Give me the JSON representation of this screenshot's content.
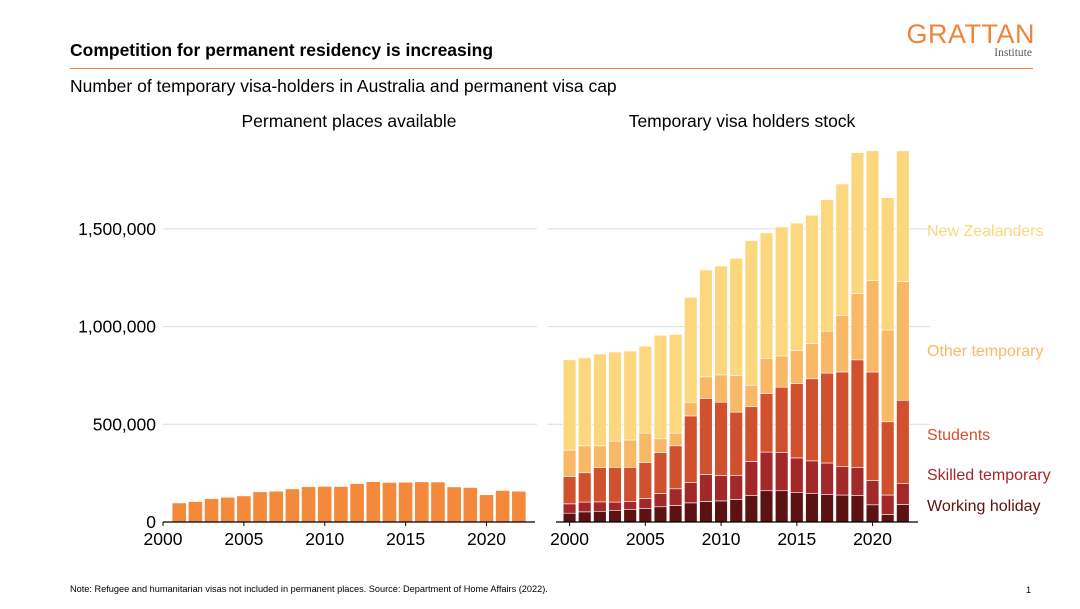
{
  "header": {
    "title": "Competition for permanent residency is increasing",
    "subtitle": "Number of temporary visa-holders in Australia and permanent visa cap"
  },
  "logo": {
    "name": "GRATTAN",
    "sub": "Institute"
  },
  "footer": {
    "note": "Note: Refugee and humanitarian visas not included in permanent places. Source: Department of Home Affairs (2022).",
    "page_number": "1"
  },
  "colors": {
    "working_holiday": "#5c1212",
    "skilled_temporary": "#a3282a",
    "students": "#d1512f",
    "other_temporary": "#f9b866",
    "new_zealanders": "#fcd77d",
    "permanent": "#f4883b",
    "accent": "#f0843a",
    "grid": "#dcdcdc"
  },
  "chart_data": [
    {
      "type": "bar",
      "title": "Permanent places available",
      "x": [
        2001,
        2002,
        2003,
        2004,
        2005,
        2006,
        2007,
        2008,
        2009,
        2010,
        2011,
        2012,
        2013,
        2014,
        2015,
        2016,
        2017,
        2018,
        2019,
        2020,
        2021,
        2022
      ],
      "values": [
        96000,
        103000,
        118000,
        125000,
        132000,
        153000,
        156000,
        168000,
        179000,
        181000,
        180000,
        195000,
        205000,
        201000,
        202000,
        204000,
        203000,
        178000,
        175000,
        138000,
        160000,
        156000
      ],
      "xticks": [
        2000,
        2005,
        2010,
        2015,
        2020
      ],
      "xlim": [
        2000,
        2023
      ],
      "ylim": [
        0,
        1950000
      ],
      "yticks": [
        0,
        500000,
        1000000,
        1500000
      ],
      "ytick_labels": [
        "0",
        "500,000",
        "1,000,000",
        "1,500,000"
      ],
      "grid": true
    },
    {
      "type": "bar",
      "stacked": true,
      "title": "Temporary visa holders stock",
      "x": [
        2000,
        2001,
        2002,
        2003,
        2004,
        2005,
        2006,
        2007,
        2008,
        2009,
        2010,
        2011,
        2012,
        2013,
        2014,
        2015,
        2016,
        2017,
        2018,
        2019,
        2020,
        2021,
        2022
      ],
      "series": [
        {
          "name": "Working holiday",
          "values": [
            45000,
            52000,
            55000,
            60000,
            65000,
            70000,
            78000,
            85000,
            98000,
            105000,
            108000,
            115000,
            135000,
            160000,
            160000,
            150000,
            145000,
            140000,
            138000,
            135000,
            88000,
            38000,
            90000
          ]
        },
        {
          "name": "Skilled temporary",
          "values": [
            48000,
            50000,
            48000,
            42000,
            40000,
            50000,
            68000,
            85000,
            105000,
            138000,
            130000,
            122000,
            175000,
            198000,
            195000,
            178000,
            168000,
            162000,
            145000,
            145000,
            125000,
            100000,
            108000
          ]
        },
        {
          "name": "Students",
          "values": [
            140000,
            150000,
            175000,
            178000,
            175000,
            185000,
            210000,
            220000,
            340000,
            390000,
            375000,
            325000,
            280000,
            300000,
            335000,
            380000,
            420000,
            460000,
            485000,
            550000,
            555000,
            375000,
            425000
          ]
        },
        {
          "name": "Other temporary",
          "values": [
            135000,
            138000,
            112000,
            134000,
            140000,
            150000,
            70000,
            65000,
            70000,
            110000,
            140000,
            188000,
            110000,
            180000,
            160000,
            170000,
            180000,
            215000,
            290000,
            340000,
            467000,
            470000,
            607000
          ]
        },
        {
          "name": "New Zealanders",
          "values": [
            462000,
            450000,
            470000,
            456000,
            455000,
            445000,
            530000,
            505000,
            537000,
            547000,
            557000,
            600000,
            740000,
            642000,
            660000,
            652000,
            657000,
            673000,
            672000,
            720000,
            665000,
            677000,
            670000
          ]
        }
      ],
      "xticks": [
        2000,
        2005,
        2010,
        2015,
        2020
      ],
      "xlim": [
        1999.5,
        2023
      ],
      "ylim": [
        0,
        1950000
      ],
      "legend": "right",
      "grid": true
    }
  ]
}
